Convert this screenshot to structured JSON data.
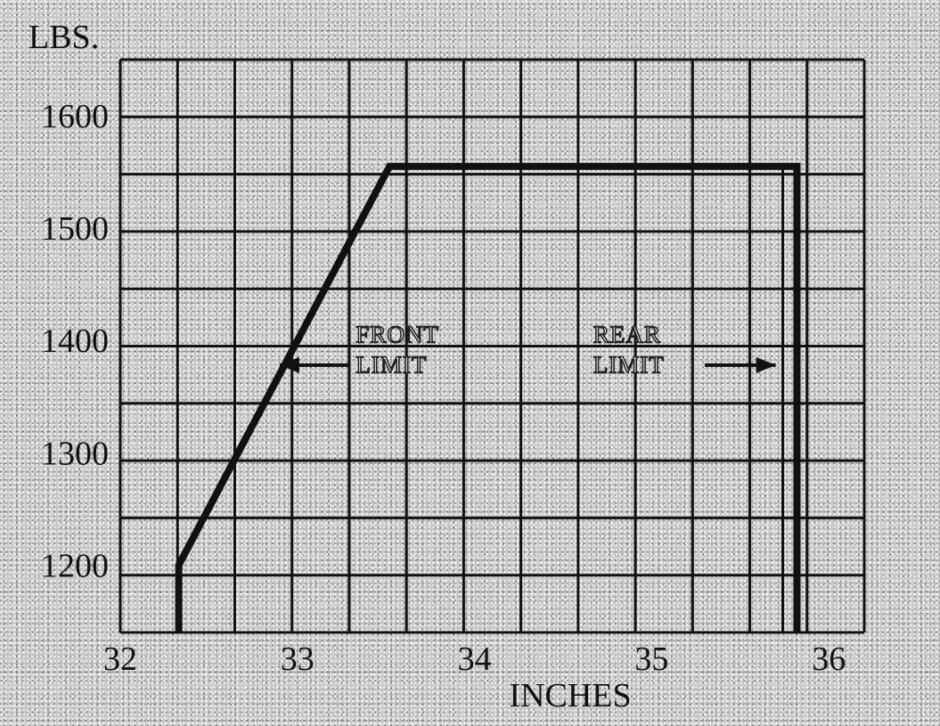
{
  "chart_data": {
    "type": "line",
    "title": "",
    "ylabel": "LBS.",
    "xlabel": "INCHES",
    "xlim": [
      32,
      36.2
    ],
    "ylim": [
      1140,
      1650
    ],
    "x_ticks": [
      32,
      33,
      34,
      35,
      36
    ],
    "x_tick_labels": [
      "32",
      "33",
      "34",
      "35",
      "36"
    ],
    "y_ticks": [
      1200,
      1300,
      1400,
      1500,
      1600
    ],
    "y_tick_labels": [
      "1200",
      "1300",
      "1400",
      "1500",
      "1600"
    ],
    "grid": true,
    "series": [
      {
        "x": [
          32.33,
          32.33,
          33.52,
          35.82,
          35.82
        ],
        "y": [
          1140,
          1200,
          1555,
          1555,
          1140
        ]
      }
    ],
    "rear_inner_line": {
      "x": [
        35.74,
        35.74
      ],
      "y": [
        1555,
        1140
      ]
    },
    "annotations": [
      {
        "lines": [
          "FRONT",
          "LIMIT"
        ],
        "text_x": 33.33,
        "text_y": 1398,
        "arrow_from_x": 33.3,
        "arrow_to_x": 32.9,
        "arrow_y": 1378
      },
      {
        "lines": [
          "REAR",
          "LIMIT"
        ],
        "text_x": 34.67,
        "text_y": 1398,
        "arrow_from_x": 35.3,
        "arrow_to_x": 35.7,
        "arrow_y": 1378
      }
    ]
  }
}
